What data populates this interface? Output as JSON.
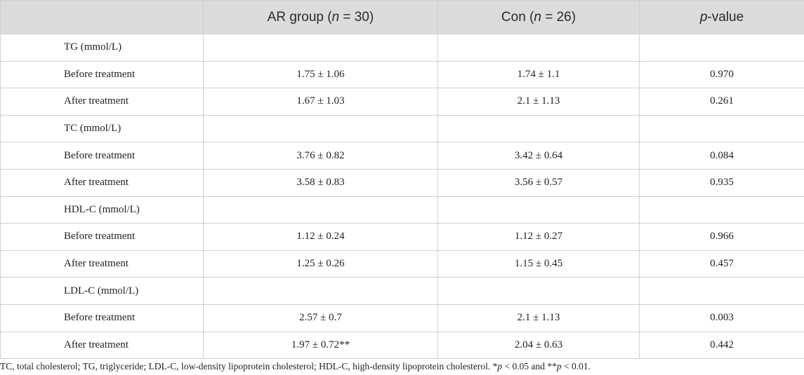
{
  "table": {
    "header": {
      "col0": "",
      "col1_prefix": "AR group (",
      "col1_italic": "n",
      "col1_suffix": " = 30)",
      "col2_prefix": "Con (",
      "col2_italic": "n",
      "col2_suffix": " = 26)",
      "col3_italic": "p",
      "col3_suffix": "-value"
    },
    "groups": [
      {
        "label": "TG (mmol/L)",
        "rows": [
          {
            "label": "Before treatment",
            "ar": "1.75 ± 1.06",
            "con": "1.74 ± 1.1",
            "p": "0.970"
          },
          {
            "label": "After treatment",
            "ar": "1.67 ± 1.03",
            "con": "2.1 ± 1.13",
            "p": "0.261"
          }
        ]
      },
      {
        "label": "TC (mmol/L)",
        "rows": [
          {
            "label": "Before treatment",
            "ar": "3.76 ± 0.82",
            "con": "3.42 ± 0.64",
            "p": "0.084"
          },
          {
            "label": "After treatment",
            "ar": "3.58 ± 0.83",
            "con": "3.56 ± 0.57",
            "p": "0.935"
          }
        ]
      },
      {
        "label": "HDL-C (mmol/L)",
        "rows": [
          {
            "label": "Before treatment",
            "ar": "1.12 ± 0.24",
            "con": "1.12 ± 0.27",
            "p": "0.966"
          },
          {
            "label": "After treatment",
            "ar": "1.25 ± 0.26",
            "con": "1.15 ± 0.45",
            "p": "0.457"
          }
        ]
      },
      {
        "label": "LDL-C (mmol/L)",
        "rows": [
          {
            "label": "Before treatment",
            "ar": "2.57 ± 0.7",
            "con": "2.1 ± 1.13",
            "p": "0.003"
          },
          {
            "label": "After treatment",
            "ar": "1.97 ± 0.72**",
            "con": "2.04 ± 0.63",
            "p": "0.442"
          }
        ]
      }
    ]
  },
  "footnote": {
    "text": "TC, total cholesterol; TG, triglyceride; LDL-C, low-density lipoprotein cholesterol; HDL-C, high-density lipoprotein cholesterol. *",
    "p1_italic": "p",
    "mid": " < 0.05 and **",
    "p2_italic": "p",
    "end": " < 0.01."
  }
}
